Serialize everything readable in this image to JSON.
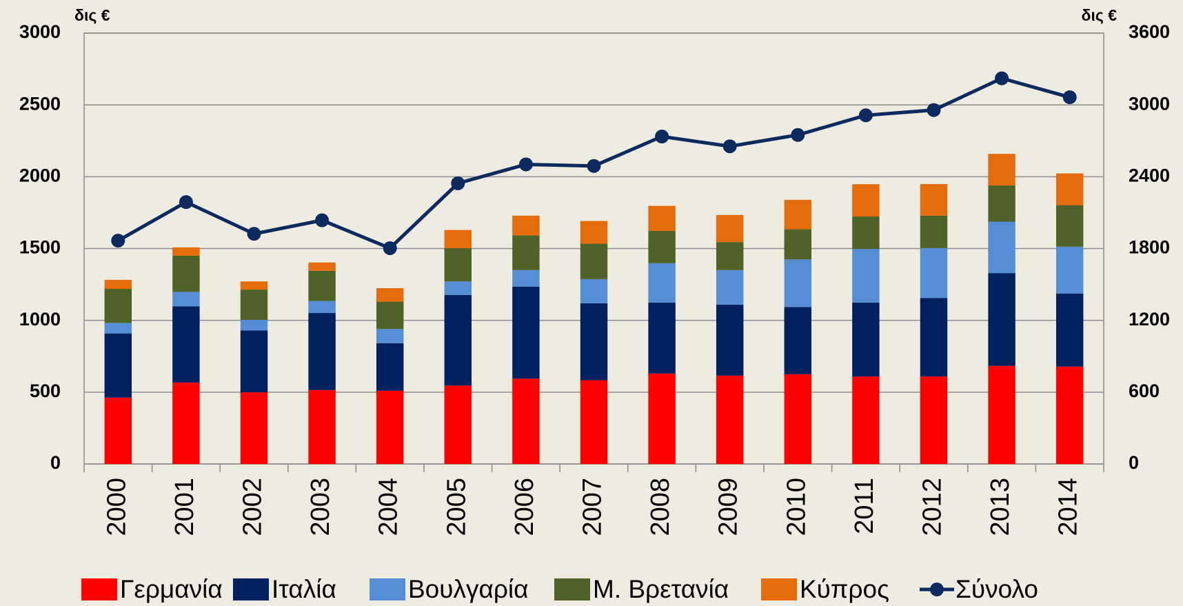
{
  "chart_data": {
    "type": "bar",
    "stacked": true,
    "y_unit_label": "δις €",
    "y2_unit_label": "δις €",
    "categories": [
      "2000",
      "2001",
      "2002",
      "2003",
      "2004",
      "2005",
      "2006",
      "2007",
      "2008",
      "2009",
      "2010",
      "2011",
      "2012",
      "2013",
      "2014"
    ],
    "series": [
      {
        "name": "Γερμανία",
        "color": "#ff0000",
        "values": [
          462,
          567,
          499,
          515,
          510,
          546,
          594,
          583,
          630,
          615,
          625,
          609,
          609,
          683,
          678
        ]
      },
      {
        "name": "Ιταλία",
        "color": "#002060",
        "values": [
          447,
          531,
          431,
          536,
          331,
          631,
          641,
          536,
          494,
          494,
          468,
          515,
          547,
          646,
          509
        ]
      },
      {
        "name": "Βουλγαρία",
        "color": "#558ed5",
        "values": [
          73,
          100,
          73,
          84,
          99,
          94,
          115,
          168,
          274,
          241,
          331,
          373,
          347,
          358,
          326
        ]
      },
      {
        "name": "Μ. Βρετανία",
        "color": "#4f6228",
        "values": [
          237,
          252,
          211,
          210,
          190,
          232,
          242,
          247,
          225,
          195,
          210,
          226,
          226,
          252,
          289
        ]
      },
      {
        "name": "Κύπρος",
        "color": "#e46c0a",
        "values": [
          63,
          58,
          57,
          58,
          94,
          126,
          137,
          158,
          174,
          189,
          205,
          225,
          220,
          220,
          221
        ]
      },
      {
        "name": "Σύνολο",
        "color": "#0d2a5e",
        "type": "line",
        "axis": "y2",
        "values": [
          1866,
          2188,
          1923,
          2036,
          1803,
          2345,
          2503,
          2490,
          2736,
          2654,
          2749,
          2913,
          2957,
          3222,
          3064
        ]
      }
    ],
    "ylim": [
      0,
      3000
    ],
    "yticks": [
      0,
      500,
      1000,
      1500,
      2000,
      2500,
      3000
    ],
    "y2lim": [
      0,
      3600
    ],
    "y2ticks": [
      0,
      600,
      1200,
      1800,
      2400,
      3000,
      3600
    ],
    "grid": true,
    "legend": "bottom"
  }
}
